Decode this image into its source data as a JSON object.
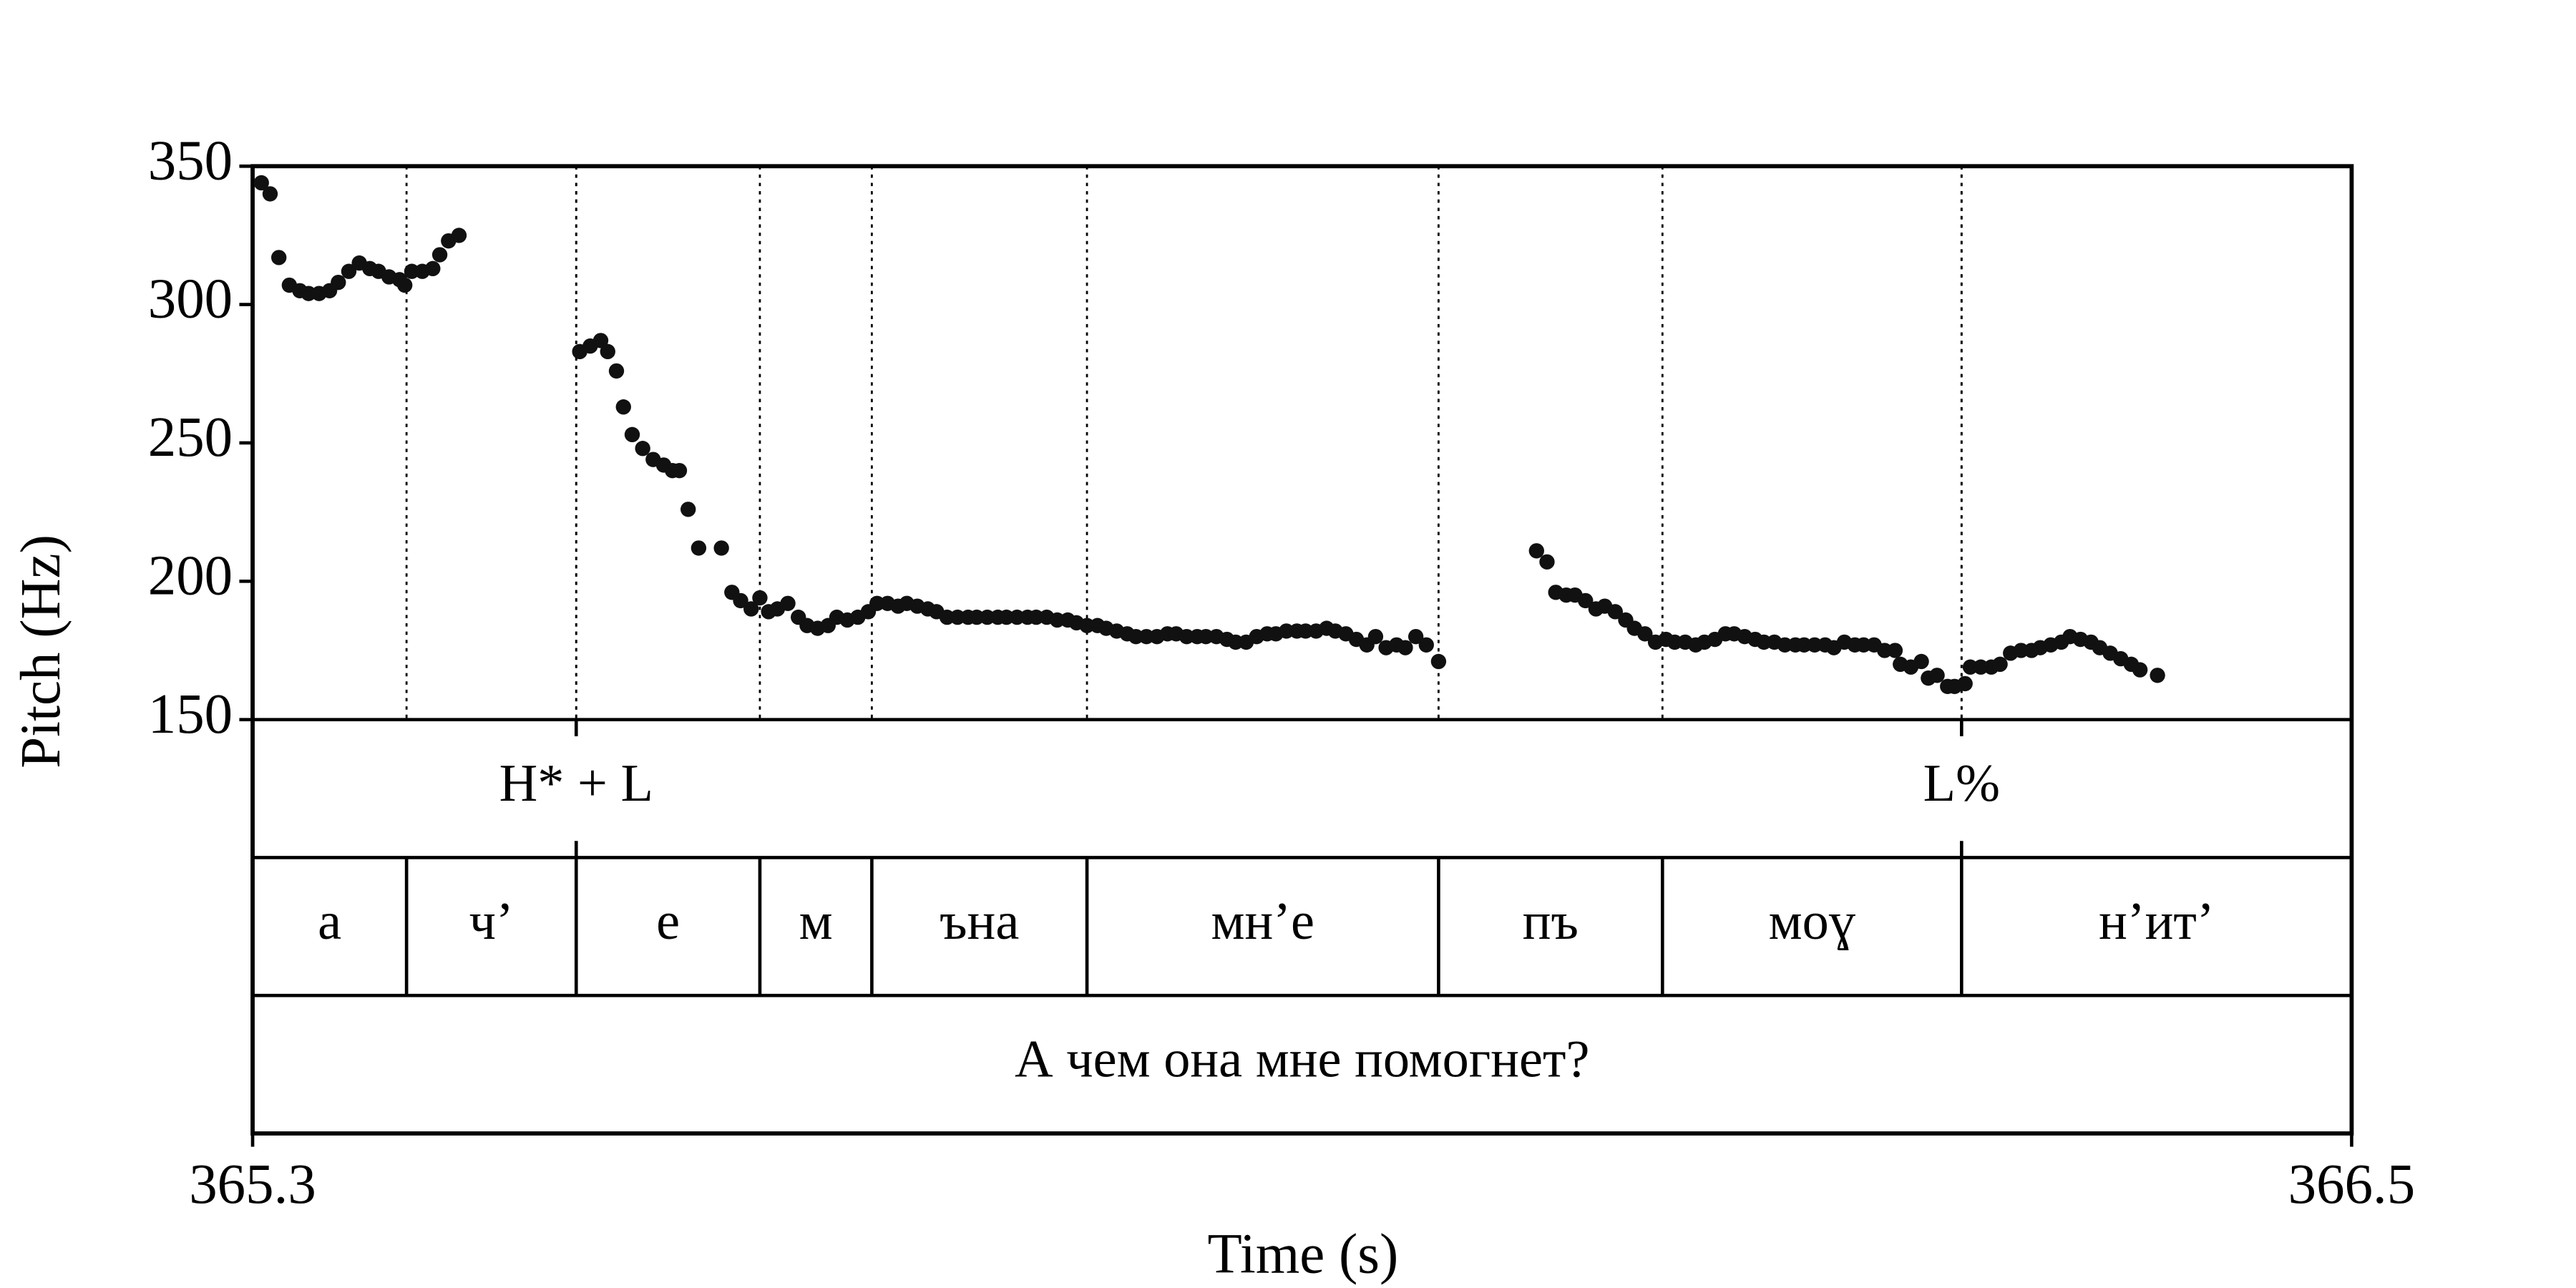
{
  "chart_data": {
    "type": "scatter",
    "xlabel": "Time (s)",
    "ylabel": "Pitch (Hz)",
    "xlim": [
      365.3,
      366.5
    ],
    "xticks": [
      365.3,
      366.5
    ],
    "ylim": [
      150,
      350
    ],
    "yticks": [
      150,
      200,
      250,
      300,
      350
    ],
    "color": "#111111",
    "x": [
      365.305,
      365.31,
      365.315,
      365.321,
      365.327,
      365.332,
      365.338,
      365.344,
      365.349,
      365.355,
      365.361,
      365.367,
      365.372,
      365.378,
      365.384,
      365.387,
      365.391,
      365.397,
      365.403,
      365.407,
      365.412,
      365.418,
      365.487,
      365.493,
      365.499,
      365.503,
      365.508,
      365.512,
      365.517,
      365.523,
      365.529,
      365.535,
      365.54,
      365.544,
      365.549,
      365.555,
      365.568,
      365.574,
      365.579,
      365.585,
      365.59,
      365.595,
      365.6,
      365.606,
      365.612,
      365.617,
      365.623,
      365.629,
      365.634,
      365.64,
      365.646,
      365.652,
      365.657,
      365.663,
      365.669,
      365.674,
      365.68,
      365.686,
      365.691,
      365.697,
      365.703,
      365.709,
      365.714,
      365.72,
      365.726,
      365.731,
      365.737,
      365.743,
      365.748,
      365.754,
      365.76,
      365.766,
      365.771,
      365.777,
      365.783,
      365.788,
      365.794,
      365.8,
      365.805,
      365.811,
      365.817,
      365.823,
      365.828,
      365.834,
      365.84,
      365.845,
      365.851,
      365.857,
      365.862,
      365.868,
      365.874,
      365.88,
      365.885,
      365.891,
      365.897,
      365.902,
      365.908,
      365.914,
      365.919,
      365.925,
      365.931,
      365.937,
      365.942,
      365.948,
      365.954,
      365.959,
      365.965,
      365.971,
      365.978,
      366.034,
      366.04,
      366.045,
      366.051,
      366.056,
      366.062,
      366.068,
      366.073,
      366.079,
      366.085,
      366.09,
      366.096,
      366.102,
      366.108,
      366.113,
      366.119,
      366.125,
      366.13,
      366.136,
      366.142,
      366.147,
      366.153,
      366.159,
      366.164,
      366.17,
      366.176,
      366.182,
      366.187,
      366.193,
      366.199,
      366.204,
      366.21,
      366.216,
      366.221,
      366.227,
      366.233,
      366.239,
      366.242,
      366.248,
      366.254,
      366.258,
      366.263,
      366.269,
      366.273,
      366.279,
      366.282,
      366.288,
      366.294,
      366.299,
      366.305,
      366.311,
      366.317,
      366.322,
      366.328,
      366.334,
      366.339,
      366.345,
      366.351,
      366.356,
      366.362,
      366.368,
      366.374,
      366.379,
      366.389
    ],
    "y": [
      344,
      340,
      317,
      307,
      305,
      304,
      304,
      305,
      308,
      312,
      315,
      313,
      312,
      310,
      309,
      307,
      312,
      312,
      313,
      318,
      323,
      325,
      283,
      285,
      287,
      283,
      276,
      263,
      253,
      248,
      244,
      242,
      240,
      240,
      226,
      212,
      212,
      196,
      193,
      190,
      194,
      189,
      190,
      192,
      187,
      184,
      183,
      184,
      187,
      186,
      187,
      189,
      192,
      192,
      191,
      192,
      191,
      190,
      189,
      187,
      187,
      187,
      187,
      187,
      187,
      187,
      187,
      187,
      187,
      187,
      186,
      186,
      185,
      184,
      184,
      183,
      182,
      181,
      180,
      180,
      180,
      181,
      181,
      180,
      180,
      180,
      180,
      179,
      178,
      178,
      180,
      181,
      181,
      182,
      182,
      182,
      182,
      183,
      182,
      181,
      179,
      177,
      180,
      176,
      177,
      176,
      180,
      177,
      171,
      211,
      207,
      196,
      195,
      195,
      193,
      190,
      191,
      189,
      186,
      183,
      181,
      178,
      179,
      178,
      178,
      177,
      178,
      179,
      181,
      181,
      180,
      179,
      178,
      178,
      177,
      177,
      177,
      177,
      177,
      176,
      178,
      177,
      177,
      177,
      175,
      175,
      170,
      169,
      171,
      165,
      166,
      162,
      162,
      163,
      169,
      169,
      169,
      170,
      174,
      175,
      175,
      176,
      177,
      178,
      180,
      179,
      178,
      176,
      174,
      172,
      170,
      168,
      166
    ],
    "tiers": [
      {
        "kind": "point",
        "points": [
          {
            "time": 365.485,
            "label": "H* + L"
          },
          {
            "time": 366.277,
            "label": "L%"
          }
        ]
      },
      {
        "kind": "interval",
        "boundaries": [
          365.388,
          365.485,
          365.59,
          365.654,
          365.777,
          365.978,
          366.106,
          366.277
        ],
        "labels": [
          "а",
          "ч’",
          "е",
          "м",
          "ъна",
          "мн’е",
          "пъ",
          "моɣ",
          "н’ит’"
        ]
      },
      {
        "kind": "interval",
        "boundaries": [],
        "labels": [
          "А чем она мне помогнет?"
        ]
      }
    ]
  }
}
